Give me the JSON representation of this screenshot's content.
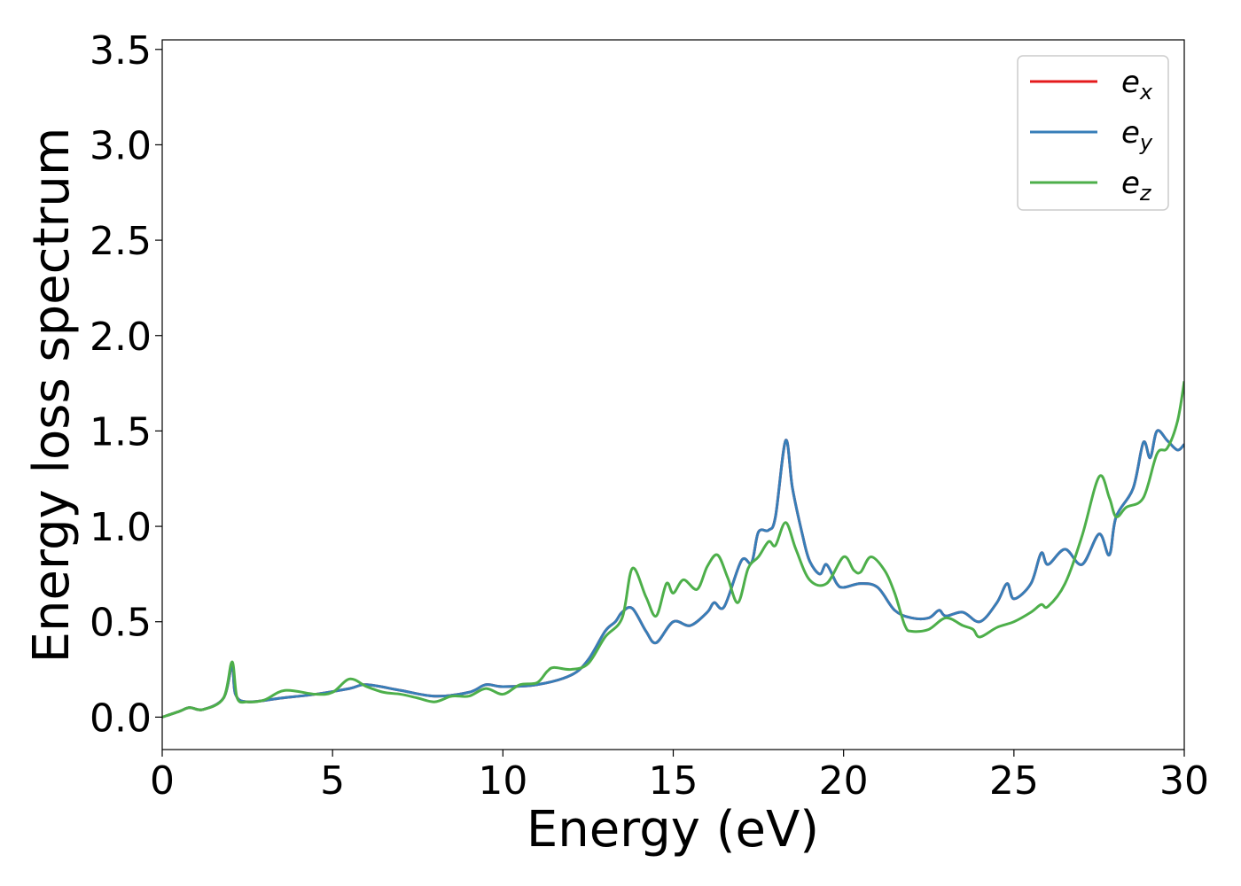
{
  "chart_data": {
    "type": "line",
    "title": "",
    "xlabel": "Energy (eV)",
    "ylabel": "Energy loss spectrum",
    "xlim": [
      0,
      30
    ],
    "ylim": [
      -0.17,
      3.55
    ],
    "xticks": [
      0,
      5,
      10,
      15,
      20,
      25,
      30
    ],
    "xtick_labels": [
      "0",
      "5",
      "10",
      "15",
      "20",
      "25",
      "30"
    ],
    "yticks": [
      0.0,
      0.5,
      1.0,
      1.5,
      2.0,
      2.5,
      3.0,
      3.5
    ],
    "ytick_labels": [
      "0.0",
      "0.5",
      "1.0",
      "1.5",
      "2.0",
      "2.5",
      "3.0",
      "3.5"
    ],
    "grid": false,
    "legend_position": "top-right",
    "series": [
      {
        "name": "e",
        "subscript": "x",
        "color": "#e41a1c",
        "x": [
          0,
          0.5,
          0.8,
          1.2,
          1.8,
          2.05,
          2.15,
          2.5,
          3.5,
          4.5,
          5.5,
          6.0,
          7.0,
          8.0,
          9.0,
          9.5,
          10.0,
          11.0,
          12.0,
          12.5,
          13.0,
          13.3,
          13.5,
          13.8,
          14.2,
          14.5,
          15.0,
          15.5,
          16.0,
          16.2,
          16.5,
          17.0,
          17.3,
          17.5,
          17.8,
          18.0,
          18.3,
          18.5,
          18.8,
          19.0,
          19.3,
          19.5,
          19.8,
          20.0,
          20.5,
          21.0,
          21.5,
          22.0,
          22.5,
          22.8,
          23.0,
          23.5,
          24.0,
          24.5,
          24.8,
          25.0,
          25.5,
          25.8,
          26.0,
          26.5,
          27.0,
          27.5,
          27.8,
          28.0,
          28.5,
          28.8,
          29.0,
          29.2,
          29.5,
          29.8,
          30.0
        ],
        "y": [
          0,
          0.03,
          0.05,
          0.04,
          0.1,
          0.27,
          0.12,
          0.08,
          0.1,
          0.12,
          0.15,
          0.17,
          0.14,
          0.11,
          0.13,
          0.17,
          0.16,
          0.17,
          0.22,
          0.3,
          0.45,
          0.5,
          0.55,
          0.57,
          0.45,
          0.39,
          0.5,
          0.48,
          0.55,
          0.6,
          0.58,
          0.82,
          0.81,
          0.97,
          0.98,
          1.05,
          1.45,
          1.2,
          0.95,
          0.82,
          0.75,
          0.8,
          0.7,
          0.68,
          0.7,
          0.68,
          0.56,
          0.52,
          0.52,
          0.56,
          0.53,
          0.55,
          0.5,
          0.6,
          0.7,
          0.62,
          0.7,
          0.86,
          0.8,
          0.88,
          0.8,
          0.96,
          0.85,
          1.05,
          1.2,
          1.44,
          1.36,
          1.5,
          1.45,
          1.4,
          1.43
        ]
      },
      {
        "name": "e",
        "subscript": "y",
        "color": "#377eb8",
        "x": [
          0,
          0.5,
          0.8,
          1.2,
          1.8,
          2.05,
          2.15,
          2.5,
          3.5,
          4.5,
          5.5,
          6.0,
          7.0,
          8.0,
          9.0,
          9.5,
          10.0,
          11.0,
          12.0,
          12.5,
          13.0,
          13.3,
          13.5,
          13.8,
          14.2,
          14.5,
          15.0,
          15.5,
          16.0,
          16.2,
          16.5,
          17.0,
          17.3,
          17.5,
          17.8,
          18.0,
          18.3,
          18.5,
          18.8,
          19.0,
          19.3,
          19.5,
          19.8,
          20.0,
          20.5,
          21.0,
          21.5,
          22.0,
          22.5,
          22.8,
          23.0,
          23.5,
          24.0,
          24.5,
          24.8,
          25.0,
          25.5,
          25.8,
          26.0,
          26.5,
          27.0,
          27.5,
          27.8,
          28.0,
          28.5,
          28.8,
          29.0,
          29.2,
          29.5,
          29.8,
          30.0
        ],
        "y": [
          0,
          0.03,
          0.05,
          0.04,
          0.1,
          0.27,
          0.12,
          0.08,
          0.1,
          0.12,
          0.15,
          0.17,
          0.14,
          0.11,
          0.13,
          0.17,
          0.16,
          0.17,
          0.22,
          0.3,
          0.45,
          0.5,
          0.55,
          0.57,
          0.45,
          0.39,
          0.5,
          0.48,
          0.55,
          0.6,
          0.58,
          0.82,
          0.81,
          0.97,
          0.98,
          1.05,
          1.45,
          1.2,
          0.95,
          0.82,
          0.75,
          0.8,
          0.7,
          0.68,
          0.7,
          0.68,
          0.56,
          0.52,
          0.52,
          0.56,
          0.53,
          0.55,
          0.5,
          0.6,
          0.7,
          0.62,
          0.7,
          0.86,
          0.8,
          0.88,
          0.8,
          0.96,
          0.85,
          1.05,
          1.2,
          1.44,
          1.36,
          1.5,
          1.45,
          1.4,
          1.43
        ]
      },
      {
        "name": "e",
        "subscript": "z",
        "color": "#4daf4a",
        "x": [
          0,
          0.5,
          0.8,
          1.2,
          1.8,
          2.05,
          2.2,
          2.5,
          3.0,
          3.6,
          4.5,
          5.0,
          5.5,
          6.0,
          6.5,
          7.0,
          7.5,
          8.0,
          8.5,
          9.0,
          9.5,
          10.0,
          10.5,
          11.0,
          11.3,
          11.5,
          12.0,
          12.5,
          13.0,
          13.5,
          13.8,
          14.2,
          14.5,
          14.8,
          15.0,
          15.3,
          15.7,
          16.0,
          16.3,
          16.6,
          16.9,
          17.2,
          17.5,
          17.8,
          18.0,
          18.3,
          18.6,
          19.0,
          19.5,
          20.0,
          20.3,
          20.5,
          20.8,
          21.2,
          21.5,
          21.8,
          22.0,
          22.5,
          23.0,
          23.5,
          23.8,
          24.0,
          24.5,
          25.0,
          25.5,
          25.8,
          26.0,
          26.5,
          27.0,
          27.5,
          27.8,
          28.0,
          28.3,
          28.8,
          29.2,
          29.5,
          29.8,
          30.0
        ],
        "y": [
          0,
          0.03,
          0.05,
          0.04,
          0.1,
          0.29,
          0.1,
          0.08,
          0.09,
          0.14,
          0.12,
          0.13,
          0.2,
          0.16,
          0.13,
          0.12,
          0.1,
          0.08,
          0.11,
          0.11,
          0.15,
          0.12,
          0.17,
          0.18,
          0.24,
          0.26,
          0.25,
          0.28,
          0.42,
          0.52,
          0.78,
          0.63,
          0.53,
          0.7,
          0.65,
          0.72,
          0.67,
          0.79,
          0.85,
          0.73,
          0.6,
          0.78,
          0.84,
          0.92,
          0.9,
          1.02,
          0.88,
          0.72,
          0.7,
          0.84,
          0.77,
          0.76,
          0.84,
          0.77,
          0.65,
          0.48,
          0.45,
          0.46,
          0.52,
          0.48,
          0.46,
          0.42,
          0.47,
          0.5,
          0.55,
          0.59,
          0.58,
          0.7,
          0.95,
          1.26,
          1.15,
          1.05,
          1.1,
          1.15,
          1.38,
          1.41,
          1.55,
          1.76
        ]
      }
    ]
  }
}
